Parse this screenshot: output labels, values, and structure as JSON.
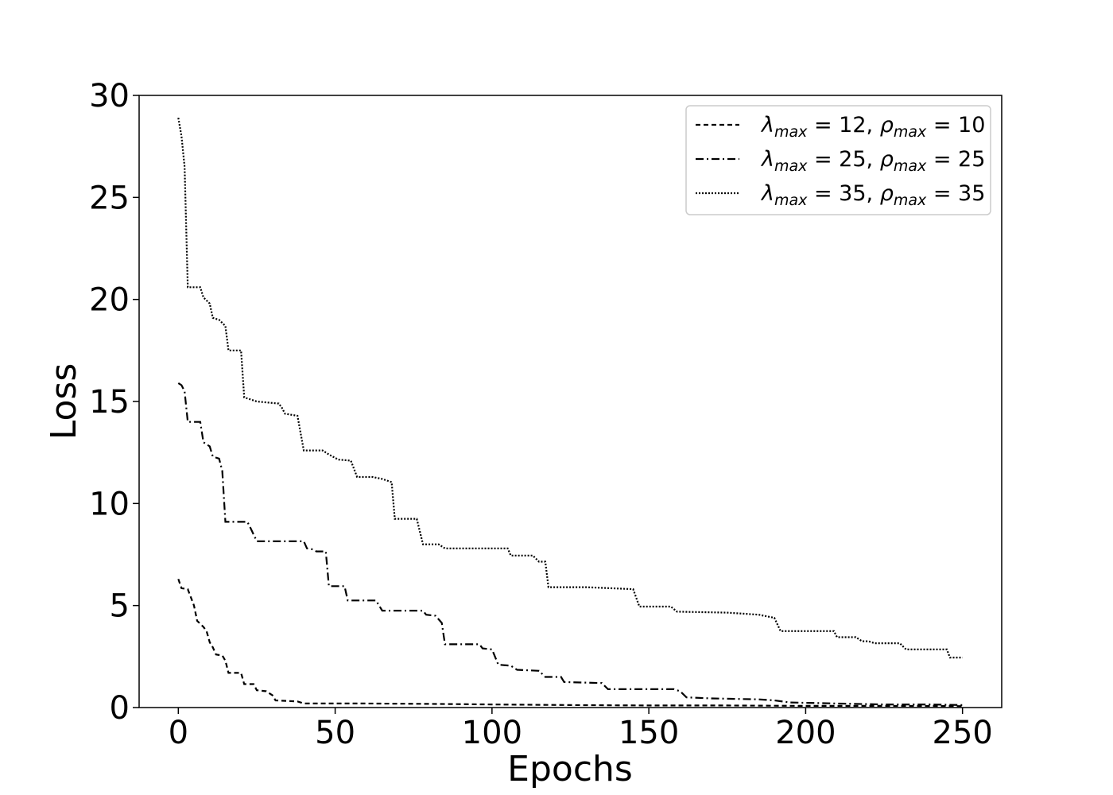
{
  "chart_data": {
    "type": "line",
    "xlabel": "Epochs",
    "ylabel": "Loss",
    "xlim": [
      -12.5,
      262.5
    ],
    "ylim": [
      0,
      30
    ],
    "xticks": [
      0,
      50,
      100,
      150,
      200,
      250
    ],
    "yticks": [
      0,
      5,
      10,
      15,
      20,
      25,
      30
    ],
    "grid": false,
    "legend_position": "top-right",
    "series": [
      {
        "name": "λmax = 12, ρmax = 10",
        "legend": {
          "lambda": "λ",
          "lambda_sub": "max",
          "lambda_val": "= 12,",
          "rho": "ρ",
          "rho_sub": "max",
          "rho_val": "= 10"
        },
        "dash": "dashed",
        "points": [
          [
            0,
            6.3
          ],
          [
            1,
            5.85
          ],
          [
            3,
            5.8
          ],
          [
            4,
            5.4
          ],
          [
            5,
            5.0
          ],
          [
            6,
            4.25
          ],
          [
            8,
            3.95
          ],
          [
            9,
            3.75
          ],
          [
            10,
            3.2
          ],
          [
            11,
            2.95
          ],
          [
            12,
            2.6
          ],
          [
            14,
            2.55
          ],
          [
            15,
            2.3
          ],
          [
            16,
            1.7
          ],
          [
            20,
            1.7
          ],
          [
            21,
            1.15
          ],
          [
            24,
            1.15
          ],
          [
            25,
            0.85
          ],
          [
            28,
            0.8
          ],
          [
            30,
            0.6
          ],
          [
            31,
            0.35
          ],
          [
            38,
            0.3
          ],
          [
            40,
            0.2
          ],
          [
            60,
            0.2
          ],
          [
            80,
            0.18
          ],
          [
            100,
            0.15
          ],
          [
            125,
            0.12
          ],
          [
            150,
            0.1
          ],
          [
            175,
            0.1
          ],
          [
            200,
            0.08
          ],
          [
            225,
            0.08
          ],
          [
            250,
            0.07
          ]
        ]
      },
      {
        "name": "λmax = 25, ρmax = 25",
        "legend": {
          "lambda": "λ",
          "lambda_sub": "max",
          "lambda_val": "= 25,",
          "rho": "ρ",
          "rho_sub": "max",
          "rho_val": "= 25"
        },
        "dash": "dashdot",
        "points": [
          [
            0,
            15.9
          ],
          [
            1,
            15.8
          ],
          [
            2,
            15.5
          ],
          [
            3,
            14.0
          ],
          [
            7,
            14.0
          ],
          [
            8,
            13.0
          ],
          [
            10,
            12.8
          ],
          [
            11,
            12.3
          ],
          [
            13,
            12.2
          ],
          [
            14,
            11.6
          ],
          [
            15,
            9.1
          ],
          [
            22,
            9.1
          ],
          [
            23,
            8.8
          ],
          [
            25,
            8.15
          ],
          [
            40,
            8.15
          ],
          [
            41,
            7.8
          ],
          [
            43,
            7.75
          ],
          [
            44,
            7.65
          ],
          [
            47,
            7.65
          ],
          [
            48,
            5.95
          ],
          [
            53,
            5.95
          ],
          [
            54,
            5.25
          ],
          [
            63,
            5.25
          ],
          [
            65,
            4.75
          ],
          [
            78,
            4.75
          ],
          [
            79,
            4.55
          ],
          [
            82,
            4.5
          ],
          [
            84,
            4.15
          ],
          [
            85,
            3.1
          ],
          [
            96,
            3.1
          ],
          [
            97,
            2.9
          ],
          [
            100,
            2.85
          ],
          [
            102,
            2.1
          ],
          [
            106,
            2.05
          ],
          [
            108,
            1.85
          ],
          [
            115,
            1.8
          ],
          [
            117,
            1.5
          ],
          [
            122,
            1.5
          ],
          [
            123,
            1.25
          ],
          [
            135,
            1.2
          ],
          [
            137,
            0.9
          ],
          [
            158,
            0.9
          ],
          [
            160,
            0.8
          ],
          [
            162,
            0.5
          ],
          [
            170,
            0.45
          ],
          [
            185,
            0.4
          ],
          [
            190,
            0.35
          ],
          [
            195,
            0.25
          ],
          [
            210,
            0.2
          ],
          [
            225,
            0.15
          ],
          [
            240,
            0.15
          ],
          [
            250,
            0.12
          ]
        ]
      },
      {
        "name": "λmax = 35, ρmax = 35",
        "legend": {
          "lambda": "λ",
          "lambda_sub": "max",
          "lambda_val": "= 35,",
          "rho": "ρ",
          "rho_sub": "max",
          "rho_val": "= 35"
        },
        "dash": "dotted",
        "points": [
          [
            0,
            28.9
          ],
          [
            1,
            28.0
          ],
          [
            2,
            26.5
          ],
          [
            3,
            20.6
          ],
          [
            7,
            20.6
          ],
          [
            8,
            20.1
          ],
          [
            10,
            19.8
          ],
          [
            11,
            19.1
          ],
          [
            13,
            19.0
          ],
          [
            15,
            18.7
          ],
          [
            16,
            17.5
          ],
          [
            20,
            17.5
          ],
          [
            21,
            15.2
          ],
          [
            25,
            15.0
          ],
          [
            32,
            14.9
          ],
          [
            33,
            14.7
          ],
          [
            34,
            14.4
          ],
          [
            38,
            14.3
          ],
          [
            40,
            12.6
          ],
          [
            46,
            12.6
          ],
          [
            48,
            12.4
          ],
          [
            51,
            12.15
          ],
          [
            55,
            12.1
          ],
          [
            57,
            11.3
          ],
          [
            62,
            11.3
          ],
          [
            65,
            11.2
          ],
          [
            68,
            11.05
          ],
          [
            69,
            9.25
          ],
          [
            76,
            9.25
          ],
          [
            78,
            8.0
          ],
          [
            83,
            8.0
          ],
          [
            85,
            7.8
          ],
          [
            105,
            7.8
          ],
          [
            106,
            7.45
          ],
          [
            113,
            7.45
          ],
          [
            115,
            7.15
          ],
          [
            117,
            7.15
          ],
          [
            118,
            5.9
          ],
          [
            130,
            5.9
          ],
          [
            145,
            5.8
          ],
          [
            147,
            4.95
          ],
          [
            157,
            4.95
          ],
          [
            159,
            4.7
          ],
          [
            175,
            4.65
          ],
          [
            185,
            4.55
          ],
          [
            190,
            4.4
          ],
          [
            192,
            3.75
          ],
          [
            209,
            3.75
          ],
          [
            210,
            3.45
          ],
          [
            216,
            3.45
          ],
          [
            218,
            3.25
          ],
          [
            220,
            3.25
          ],
          [
            222,
            3.15
          ],
          [
            230,
            3.15
          ],
          [
            232,
            2.85
          ],
          [
            245,
            2.85
          ],
          [
            246,
            2.45
          ],
          [
            250,
            2.45
          ]
        ]
      }
    ]
  }
}
